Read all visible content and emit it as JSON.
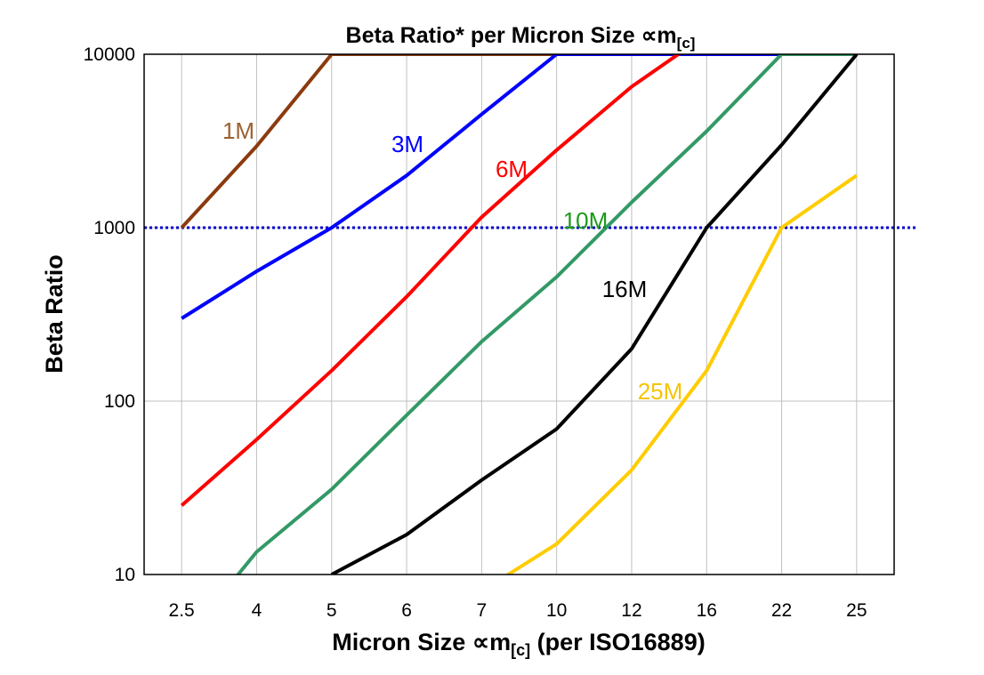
{
  "chart_data": {
    "type": "line",
    "title": "Beta Ratio* per Micron Size ∝m",
    "title_sub": "[c]",
    "xlabel": "Micron Size ∝m",
    "xlabel_sub": "[c]",
    "xlabel_suffix": " (per ISO16889)",
    "ylabel": "Beta Ratio",
    "y_scale": "log",
    "ylim": [
      10,
      10000
    ],
    "yticks": [
      10,
      100,
      1000,
      10000
    ],
    "ytick_labels": [
      "10",
      "100",
      "1000",
      "10000"
    ],
    "grid": true,
    "categories": [
      "2.5",
      "4",
      "5",
      "6",
      "7",
      "10",
      "12",
      "16",
      "22",
      "25"
    ],
    "reference_line": {
      "y": 1000,
      "color": "#0000CC",
      "style": "dotted"
    },
    "series": [
      {
        "name": "1M",
        "color": "#8B3A0F",
        "label_color": "#9C6030",
        "values": [
          1000,
          2950,
          10000,
          10000,
          10000,
          10000,
          null,
          null,
          null,
          null
        ]
      },
      {
        "name": "3M",
        "color": "#0000FF",
        "label_color": "#0000FF",
        "values": [
          300,
          560,
          1000,
          2000,
          4500,
          10000,
          10000,
          10000,
          10000,
          null
        ]
      },
      {
        "name": "6M",
        "color": "#FF0000",
        "label_color": "#FF0000",
        "values": [
          25,
          60,
          150,
          400,
          1150,
          2800,
          6500,
          13000,
          null,
          null
        ]
      },
      {
        "name": "10M",
        "color": "#339966",
        "label_color": "#1A9A1A",
        "values": [
          4,
          13.5,
          31,
          83,
          220,
          520,
          1400,
          3600,
          10000,
          10000
        ]
      },
      {
        "name": "16M",
        "color": "#000000",
        "label_color": "#000000",
        "values": [
          null,
          null,
          10,
          17,
          35,
          69,
          200,
          1000,
          3000,
          10000
        ]
      },
      {
        "name": "25M",
        "color": "#FFCC00",
        "label_color": "#F5C400",
        "values": [
          null,
          null,
          null,
          null,
          8,
          15,
          40,
          150,
          1000,
          2000
        ]
      }
    ]
  }
}
